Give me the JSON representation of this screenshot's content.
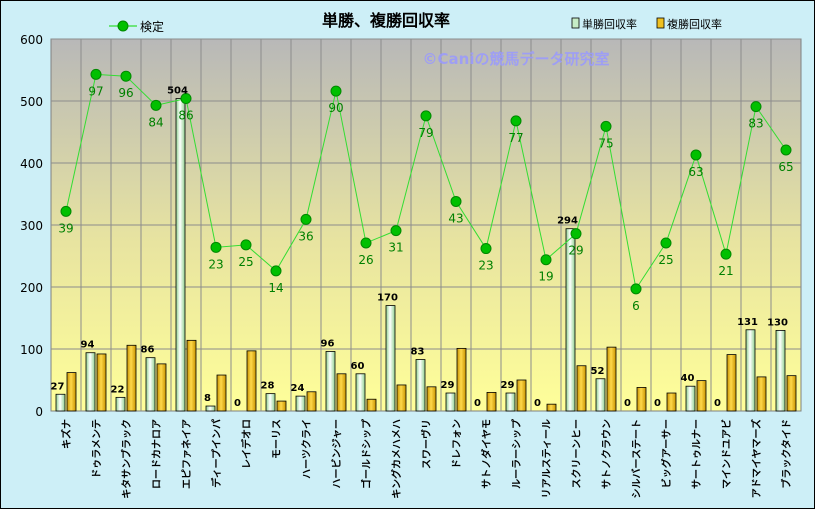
{
  "chart_data": {
    "type": "bar",
    "title": "単勝、複勝回収率",
    "watermark": "©Caniの競馬データ研究室",
    "ylim": [
      0,
      600
    ],
    "yticks": [
      0,
      100,
      200,
      300,
      400,
      500,
      600
    ],
    "categories": [
      "キズナ",
      "ドゥラメンテ",
      "キタサンブラック",
      "ロードカナロア",
      "エピファネイア",
      "ディープインパ",
      "レイデオロ",
      "モーリス",
      "ハーツクライ",
      "ハービンジャー",
      "ゴールドシップ",
      "キングカメハメハ",
      "スワーヴリ",
      "ドレフォン",
      "サトノダイヤモ",
      "ルーラーシップ",
      "リアルスティール",
      "スクリーンヒー",
      "サトノクラウン",
      "シルバーステート",
      "ビッグアーサー",
      "サートゥルナー",
      "マインドユアビ",
      "アドマイヤマーズ",
      "ブラックタイド"
    ],
    "series": [
      {
        "name": "単勝回収率",
        "kind": "bar",
        "color": "#c6ecc6",
        "values": [
          27,
          94,
          22,
          86,
          504,
          8,
          0,
          28,
          24,
          96,
          60,
          170,
          83,
          29,
          0,
          29,
          0,
          294,
          52,
          0,
          0,
          40,
          0,
          131,
          130
        ]
      },
      {
        "name": "複勝回収率",
        "kind": "bar",
        "color": "#f0c020",
        "values": [
          62,
          92,
          106,
          76,
          114,
          58,
          97,
          16,
          31,
          60,
          19,
          42,
          39,
          101,
          30,
          50,
          11,
          73,
          103,
          38,
          29,
          49,
          91,
          55,
          57
        ]
      },
      {
        "name": "検定",
        "kind": "line",
        "color": "#00cc00",
        "values": [
          322,
          543,
          540,
          493,
          504,
          264,
          268,
          226,
          309,
          516,
          271,
          291,
          476,
          338,
          262,
          468,
          244,
          286,
          459,
          197,
          271,
          413,
          253,
          491,
          421
        ],
        "labels": [
          "39",
          "97",
          "96",
          "84",
          "86",
          "23",
          "25",
          "14",
          "36",
          "90",
          "26",
          "31",
          "79",
          "43",
          "23",
          "77",
          "19",
          "29",
          "75",
          "6",
          "25",
          "63",
          "21",
          "83",
          "65"
        ]
      }
    ],
    "bar_labels": [
      "27",
      "94",
      "22",
      "86",
      "504",
      "8",
      "0",
      "28",
      "24",
      "96",
      "60",
      "170",
      "83",
      "29",
      "0",
      "29",
      "0",
      "294",
      "52",
      "0",
      "0",
      "40",
      "0",
      "131",
      "130"
    ],
    "legend": [
      "検定",
      "単勝回収率",
      "複勝回収率"
    ]
  }
}
